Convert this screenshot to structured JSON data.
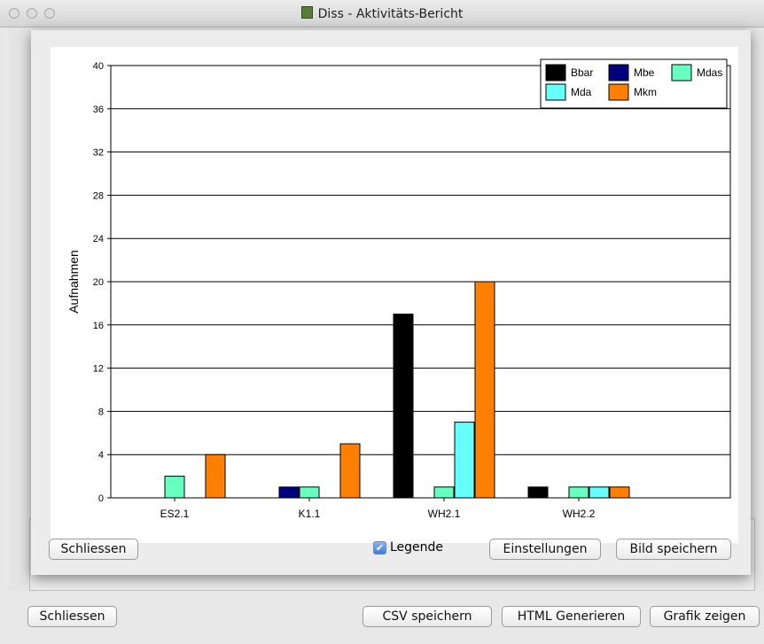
{
  "window": {
    "title": "Diss - Aktivitäts-Bericht",
    "buttons": {
      "close": "Schliessen",
      "csv": "CSV speichern",
      "html": "HTML Generieren",
      "graph": "Grafik zeigen"
    }
  },
  "dialog": {
    "buttons": {
      "close": "Schliessen",
      "settings": "Einstellungen",
      "save_image": "Bild speichern"
    },
    "legend_toggle": {
      "label": "Legende",
      "checked": true
    }
  },
  "chart_data": {
    "type": "bar",
    "title": "",
    "xlabel": "",
    "ylabel": "Aufnahmen",
    "ylim": [
      0,
      40
    ],
    "yticks": [
      0,
      4,
      8,
      12,
      16,
      20,
      24,
      28,
      32,
      36,
      40
    ],
    "grid": true,
    "legend": "top-right",
    "categories": [
      "ES2.1",
      "K1.1",
      "WH2.1",
      "WH2.2"
    ],
    "series": [
      {
        "name": "Bbar",
        "color": "#000000",
        "values": [
          0,
          0,
          17,
          1
        ]
      },
      {
        "name": "Mbe",
        "color": "#00007f",
        "values": [
          0,
          1,
          0,
          0
        ]
      },
      {
        "name": "Mdas",
        "color": "#66ffc0",
        "values": [
          2,
          1,
          1,
          1
        ]
      },
      {
        "name": "Mda",
        "color": "#66ffff",
        "values": [
          0,
          0,
          7,
          1
        ]
      },
      {
        "name": "Mkm",
        "color": "#ff7f00",
        "values": [
          4,
          5,
          20,
          1
        ]
      }
    ]
  }
}
